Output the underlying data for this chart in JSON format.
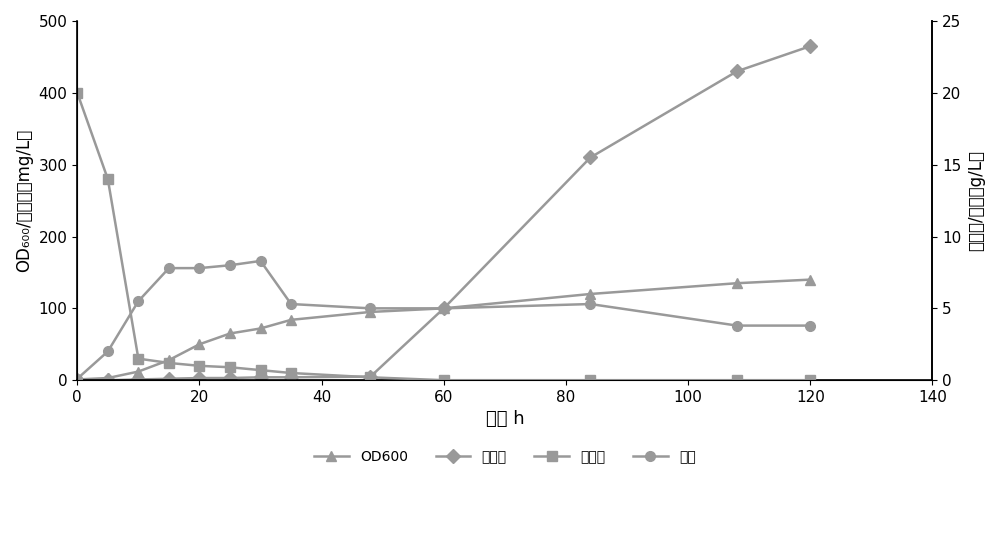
{
  "time_OD600": [
    0,
    5,
    10,
    15,
    20,
    25,
    30,
    35,
    48,
    60,
    84,
    108,
    120
  ],
  "OD600_vals": [
    1,
    3,
    12,
    28,
    50,
    65,
    72,
    84,
    95,
    100,
    120,
    135,
    140
  ],
  "time_astax": [
    0,
    5,
    10,
    15,
    20,
    25,
    30,
    35,
    48,
    60,
    84,
    108,
    120
  ],
  "astax_vals": [
    0,
    0,
    1,
    2,
    3,
    3,
    4,
    4,
    5,
    100,
    310,
    430,
    465
  ],
  "time_glucose": [
    0,
    5,
    10,
    15,
    20,
    25,
    30,
    35,
    48,
    60,
    84,
    108,
    120
  ],
  "glucose_vals": [
    20,
    14,
    1.5,
    1.2,
    1.0,
    0.9,
    0.7,
    0.5,
    0.2,
    0,
    0,
    0,
    0
  ],
  "time_ethanol": [
    0,
    5,
    10,
    15,
    20,
    25,
    30,
    35,
    48,
    60,
    84,
    108,
    120
  ],
  "ethanol_vals": [
    0.1,
    2.0,
    5.5,
    7.8,
    7.8,
    8.0,
    8.3,
    5.3,
    5.0,
    5.0,
    5.3,
    3.8,
    3.8
  ],
  "ylabel_left": "OD₆₀₀/虾青素（mg/L）",
  "ylabel_right": "葡萄糖/乙醇（g/L）",
  "xlabel": "时间 h",
  "legend_OD600": "OD600",
  "legend_astax": "虾青素",
  "legend_glucose": "葡萄糖",
  "legend_ethanol": "乙醇",
  "line_color": "#999999",
  "xlim": [
    0,
    140
  ],
  "ylim_left": [
    0,
    500
  ],
  "ylim_right": [
    0,
    25
  ],
  "xticks": [
    0,
    20,
    40,
    60,
    80,
    100,
    120,
    140
  ],
  "yticks_left": [
    0,
    100,
    200,
    300,
    400,
    500
  ],
  "yticks_right": [
    0,
    5,
    10,
    15,
    20,
    25
  ]
}
